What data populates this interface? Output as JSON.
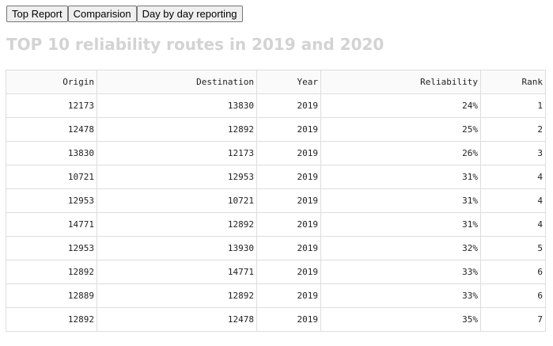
{
  "nav": {
    "top_report_label": "Top Report",
    "comparision_label": "Comparision",
    "day_by_day_label": "Day by day reporting"
  },
  "page": {
    "title": "TOP 10 reliability routes in 2019 and 2020"
  },
  "table": {
    "headers": [
      "Origin",
      "Destination",
      "Year",
      "Reliability",
      "Rank"
    ],
    "rows": [
      [
        "12173",
        "13830",
        "2019",
        "24%",
        "1"
      ],
      [
        "12478",
        "12892",
        "2019",
        "25%",
        "2"
      ],
      [
        "13830",
        "12173",
        "2019",
        "26%",
        "3"
      ],
      [
        "10721",
        "12953",
        "2019",
        "31%",
        "4"
      ],
      [
        "12953",
        "10721",
        "2019",
        "31%",
        "4"
      ],
      [
        "14771",
        "12892",
        "2019",
        "31%",
        "4"
      ],
      [
        "12953",
        "13930",
        "2019",
        "32%",
        "5"
      ],
      [
        "12892",
        "14771",
        "2019",
        "33%",
        "6"
      ],
      [
        "12889",
        "12892",
        "2019",
        "33%",
        "6"
      ],
      [
        "12892",
        "12478",
        "2019",
        "35%",
        "7"
      ]
    ]
  }
}
